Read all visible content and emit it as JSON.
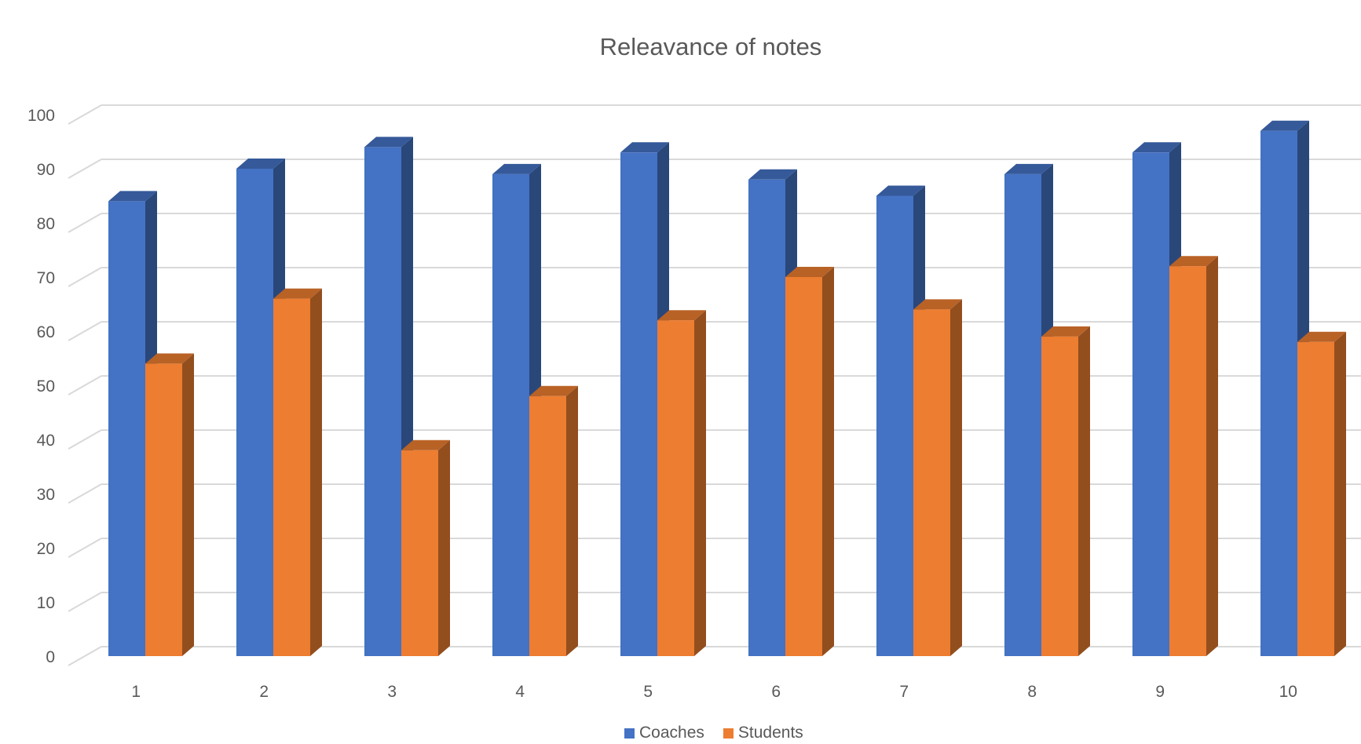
{
  "chart_data": {
    "type": "bar",
    "title": "Releavance of notes",
    "xlabel": "",
    "ylabel": "",
    "categories": [
      "1",
      "2",
      "3",
      "4",
      "5",
      "6",
      "7",
      "8",
      "9",
      "10"
    ],
    "series": [
      {
        "name": "Coaches",
        "values": [
          84,
          90,
          94,
          89,
          93,
          88,
          85,
          89,
          93,
          97
        ],
        "color": "#4472C4"
      },
      {
        "name": "Students",
        "values": [
          54,
          66,
          38,
          48,
          62,
          70,
          64,
          59,
          72,
          58
        ],
        "color": "#ED7D31"
      }
    ],
    "ylim": [
      0,
      100
    ],
    "yticks": [
      "0",
      "10",
      "20",
      "30",
      "40",
      "50",
      "60",
      "70",
      "80",
      "90",
      "100"
    ],
    "grid": true,
    "legend_position": "bottom",
    "style": "3d-clustered-column"
  }
}
